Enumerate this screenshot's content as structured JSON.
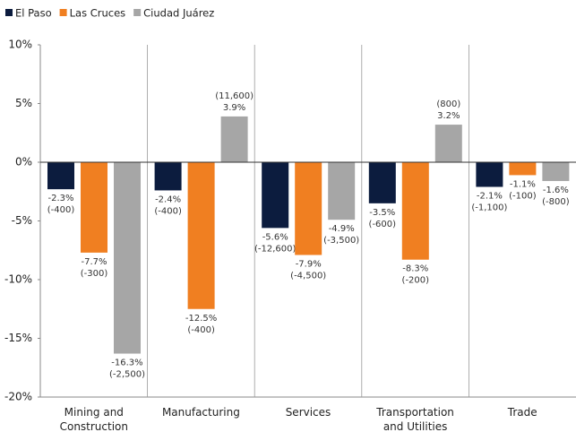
{
  "chart_data": {
    "type": "bar",
    "categories": [
      "Mining and Construction",
      "Manufacturing",
      "Services",
      "Transportation and Utilities",
      "Trade"
    ],
    "series": [
      {
        "name": "El Paso",
        "color": "#0c1c3e",
        "values": [
          -2.3,
          -2.4,
          -5.6,
          -3.5,
          -2.1
        ],
        "value_labels": [
          "-2.3%",
          "-2.4%",
          "-5.6%",
          "-3.5%",
          "-2.1%"
        ],
        "job_change_labels": [
          "(-400)",
          "(-400)",
          "(-12,600)",
          "(-600)",
          "(-1,100)"
        ]
      },
      {
        "name": "Las Cruces",
        "color": "#f07f21",
        "values": [
          -7.7,
          -12.5,
          -7.9,
          -8.3,
          -1.1
        ],
        "value_labels": [
          "-7.7%",
          "-12.5%",
          "-7.9%",
          "-8.3%",
          "-1.1%"
        ],
        "job_change_labels": [
          "(-300)",
          "(-400)",
          "(-4,500)",
          "(-200)",
          "(-100)"
        ]
      },
      {
        "name": "Ciudad Juárez",
        "color": "#a6a6a6",
        "values": [
          -16.3,
          3.9,
          -4.9,
          3.2,
          -1.6
        ],
        "value_labels": [
          "-16.3%",
          "3.9%",
          "-4.9%",
          "3.2%",
          "-1.6%"
        ],
        "job_change_labels": [
          "(-2,500)",
          "(11,600)",
          "(-3,500)",
          "(800)",
          "(-800)"
        ]
      }
    ],
    "ylim": [
      -20,
      10
    ],
    "yticks": [
      {
        "value": -20,
        "label": "-20%"
      },
      {
        "value": -15,
        "label": "-15%"
      },
      {
        "value": -10,
        "label": "-10%"
      },
      {
        "value": -5,
        "label": "-5%"
      },
      {
        "value": 0,
        "label": "0%"
      },
      {
        "value": 5,
        "label": "5%"
      },
      {
        "value": 10,
        "label": "10%"
      }
    ],
    "legend": "top-left"
  }
}
